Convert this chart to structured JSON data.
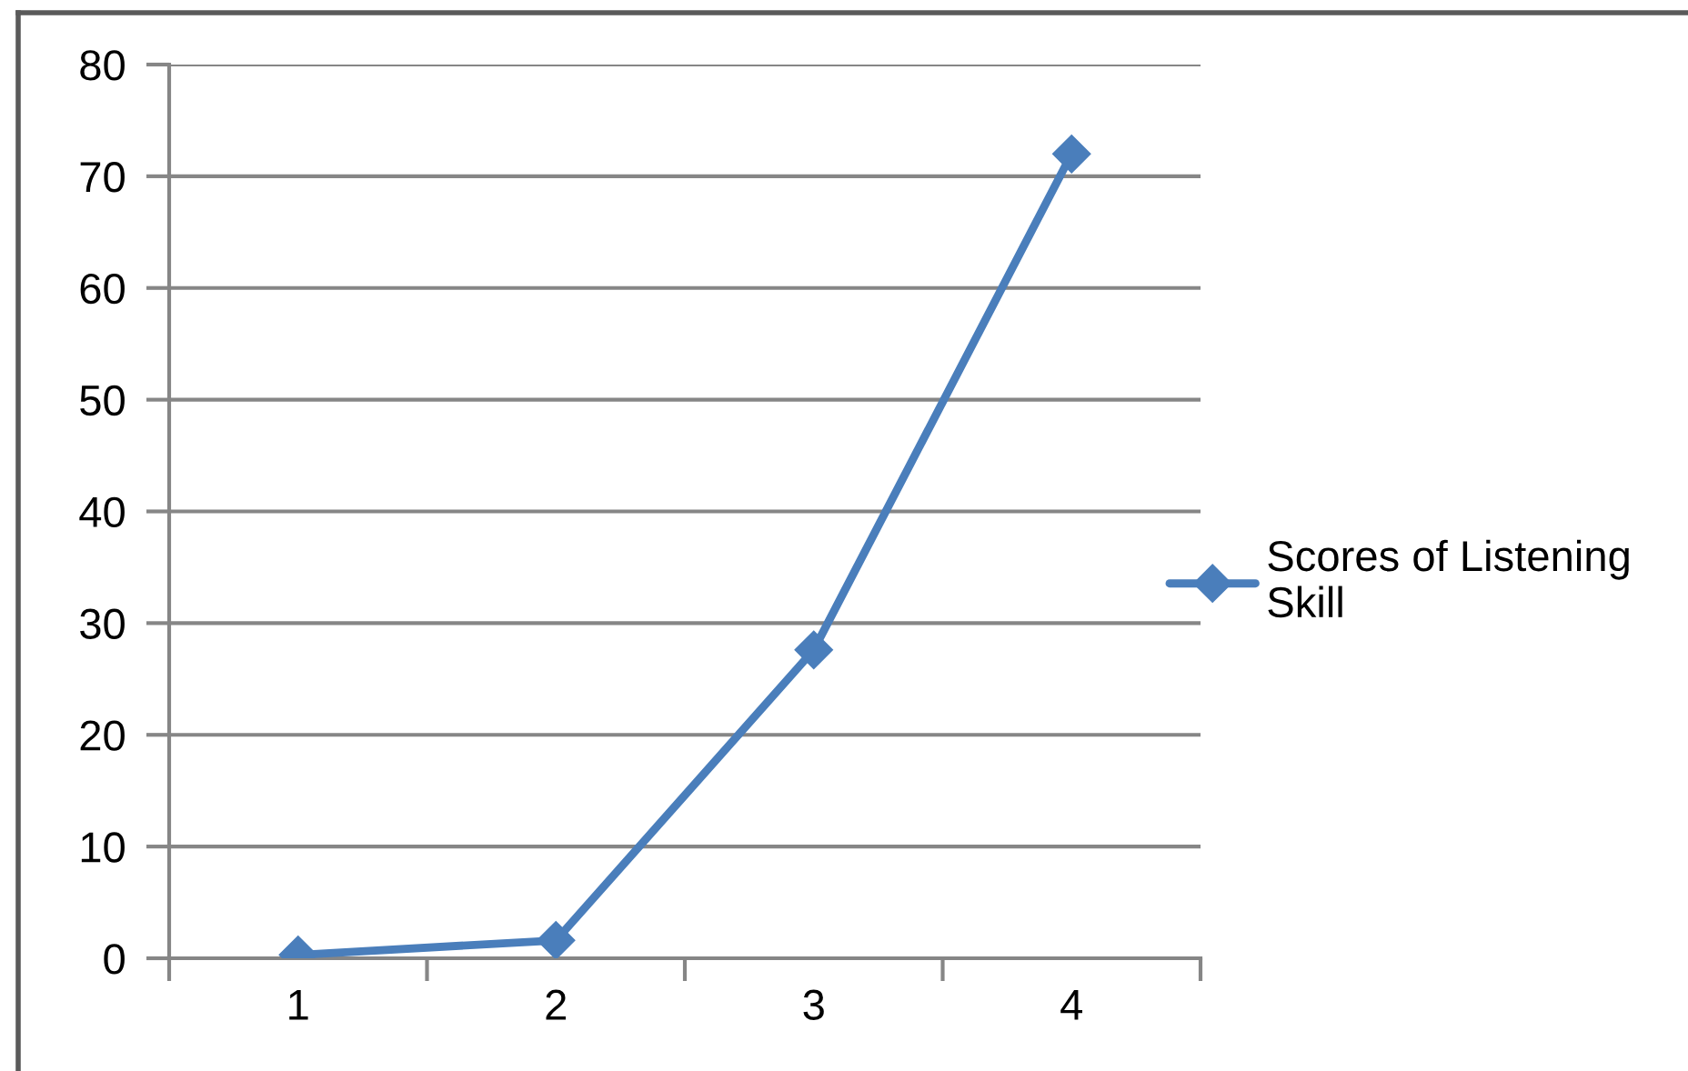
{
  "chart_data": {
    "type": "line",
    "categories": [
      "1",
      "2",
      "3",
      "4"
    ],
    "series": [
      {
        "name": "Scores of Listening Skill",
        "color": "#4a7ebb",
        "values": [
          0.3,
          1.6,
          27.6,
          72
        ]
      }
    ],
    "ylim": [
      0,
      80
    ],
    "yticks": [
      0,
      10,
      20,
      30,
      40,
      50,
      60,
      70,
      80
    ],
    "grid": "y",
    "legend": "right",
    "marker": "diamond",
    "line_style": "solid"
  }
}
